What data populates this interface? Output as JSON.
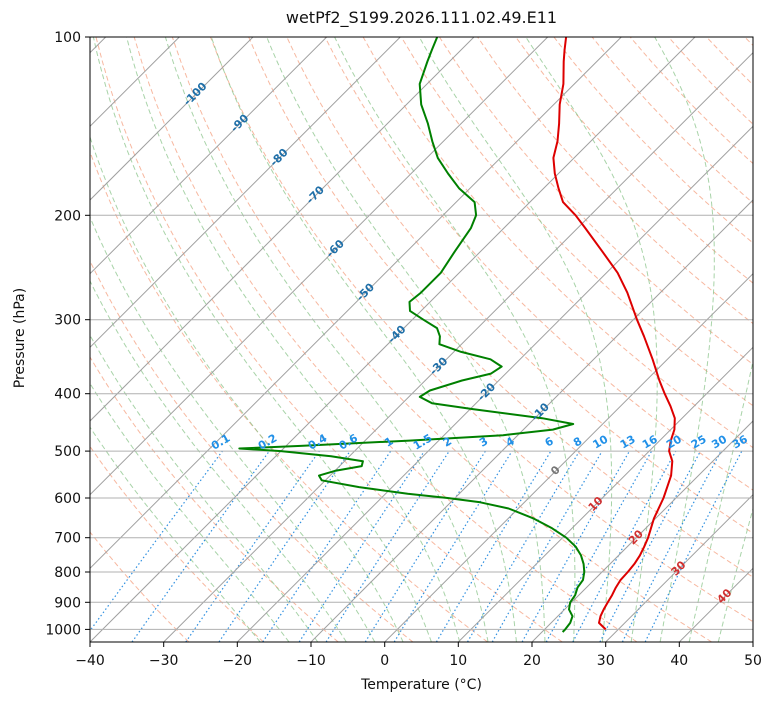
{
  "chart_data": {
    "type": "line",
    "title": "wetPf2_S199.2026.111.02.49.E11",
    "xlabel": "Temperature (°C)",
    "ylabel": "Pressure (hPa)",
    "xlim": [
      -40,
      50
    ],
    "ylim": [
      1050,
      100
    ],
    "y_scale": "log",
    "skew": true,
    "grid": true,
    "x_ticks": [
      -40,
      -30,
      -20,
      -10,
      0,
      10,
      20,
      30,
      40,
      50
    ],
    "y_ticks": [
      100,
      200,
      300,
      400,
      500,
      600,
      700,
      800,
      900,
      1000
    ],
    "series": [
      {
        "color": "#dd0000",
        "points": [
          [
            1000,
            28.3
          ],
          [
            975,
            26.5
          ],
          [
            950,
            25.8
          ],
          [
            925,
            25.3
          ],
          [
            900,
            24.9
          ],
          [
            875,
            24.5
          ],
          [
            850,
            24.0
          ],
          [
            825,
            23.6
          ],
          [
            800,
            23.5
          ],
          [
            775,
            23.3
          ],
          [
            750,
            22.9
          ],
          [
            725,
            22.3
          ],
          [
            700,
            21.6
          ],
          [
            650,
            19.8
          ],
          [
            600,
            18.3
          ],
          [
            550,
            16.3
          ],
          [
            520,
            14.5
          ],
          [
            500,
            12.7
          ],
          [
            480,
            11.5
          ],
          [
            460,
            10.5
          ],
          [
            440,
            9.0
          ],
          [
            420,
            6.8
          ],
          [
            400,
            4.3
          ],
          [
            380,
            1.8
          ],
          [
            350,
            -2.0
          ],
          [
            320,
            -6.3
          ],
          [
            300,
            -9.5
          ],
          [
            270,
            -14.5
          ],
          [
            250,
            -18.5
          ],
          [
            230,
            -23.5
          ],
          [
            210,
            -29.0
          ],
          [
            200,
            -32.0
          ],
          [
            190,
            -35.5
          ],
          [
            180,
            -38.0
          ],
          [
            170,
            -40.5
          ],
          [
            160,
            -42.8
          ],
          [
            150,
            -44.5
          ],
          [
            140,
            -46.7
          ],
          [
            130,
            -49.2
          ],
          [
            120,
            -51.5
          ],
          [
            110,
            -54.5
          ],
          [
            105,
            -56.0
          ],
          [
            100,
            -57.5
          ]
        ]
      },
      {
        "color": "#008000",
        "points": [
          [
            1010,
            22.8
          ],
          [
            1000,
            22.8
          ],
          [
            975,
            22.6
          ],
          [
            950,
            22.0
          ],
          [
            925,
            20.6
          ],
          [
            900,
            19.8
          ],
          [
            875,
            19.5
          ],
          [
            850,
            18.8
          ],
          [
            825,
            18.5
          ],
          [
            800,
            17.6
          ],
          [
            775,
            16.4
          ],
          [
            750,
            14.9
          ],
          [
            725,
            13.0
          ],
          [
            700,
            10.5
          ],
          [
            675,
            7.3
          ],
          [
            650,
            3.5
          ],
          [
            625,
            -1.3
          ],
          [
            610,
            -6.0
          ],
          [
            600,
            -11.0
          ],
          [
            590,
            -17.0
          ],
          [
            575,
            -24.5
          ],
          [
            560,
            -30.5
          ],
          [
            550,
            -31.5
          ],
          [
            540,
            -30.0
          ],
          [
            530,
            -27.0
          ],
          [
            520,
            -27.5
          ],
          [
            510,
            -32.5
          ],
          [
            500,
            -40.0
          ],
          [
            495,
            -46.0
          ],
          [
            490,
            -38.0
          ],
          [
            480,
            -24.0
          ],
          [
            470,
            -12.0
          ],
          [
            460,
            -6.0
          ],
          [
            450,
            -4.0
          ],
          [
            440,
            -9.0
          ],
          [
            425,
            -19.5
          ],
          [
            415,
            -26.0
          ],
          [
            405,
            -28.5
          ],
          [
            395,
            -28.0
          ],
          [
            380,
            -25.0
          ],
          [
            370,
            -22.0
          ],
          [
            360,
            -21.5
          ],
          [
            350,
            -24.0
          ],
          [
            340,
            -29.0
          ],
          [
            330,
            -33.0
          ],
          [
            320,
            -34.0
          ],
          [
            310,
            -35.5
          ],
          [
            300,
            -38.5
          ],
          [
            290,
            -41.5
          ],
          [
            280,
            -42.8
          ],
          [
            270,
            -42.5
          ],
          [
            250,
            -42.5
          ],
          [
            230,
            -43.5
          ],
          [
            210,
            -44.5
          ],
          [
            200,
            -45.5
          ],
          [
            190,
            -47.5
          ],
          [
            180,
            -51.5
          ],
          [
            170,
            -55.0
          ],
          [
            160,
            -58.5
          ],
          [
            150,
            -61.5
          ],
          [
            140,
            -64.5
          ],
          [
            130,
            -68.0
          ],
          [
            120,
            -71.0
          ],
          [
            110,
            -73.0
          ],
          [
            105,
            -74.0
          ],
          [
            100,
            -75.0
          ]
        ]
      }
    ],
    "background_lines": {
      "dry_adiabats": {
        "color": "#f4a080",
        "style": "dashed"
      },
      "moist_adiabats": {
        "color": "#8bc48b",
        "style": "dashed"
      },
      "mixing_ratio": {
        "color": "#3090e0",
        "style": "dotted"
      },
      "isotherms": {
        "color": "#a0a0a0",
        "style": "solid"
      }
    },
    "isotherm_labels": [
      "-100",
      "-90",
      "-80",
      "-70",
      "-60",
      "-50",
      "-40",
      "-30",
      "-20",
      "-10",
      "0",
      "10",
      "20",
      "30",
      "40"
    ],
    "isotherm_label_colors": {
      "negative": "#1f6fa8",
      "zero": "#777777",
      "positive": "#d03030"
    },
    "mixing_ratio_labels": [
      "0.1",
      "0.2",
      "0.4",
      "0.6",
      "1",
      "1.5",
      "2",
      "3",
      "4",
      "6",
      "8",
      "10",
      "13",
      "16",
      "20",
      "25",
      "30",
      "36"
    ],
    "mixing_ratio_label_color": "#2090e8"
  }
}
